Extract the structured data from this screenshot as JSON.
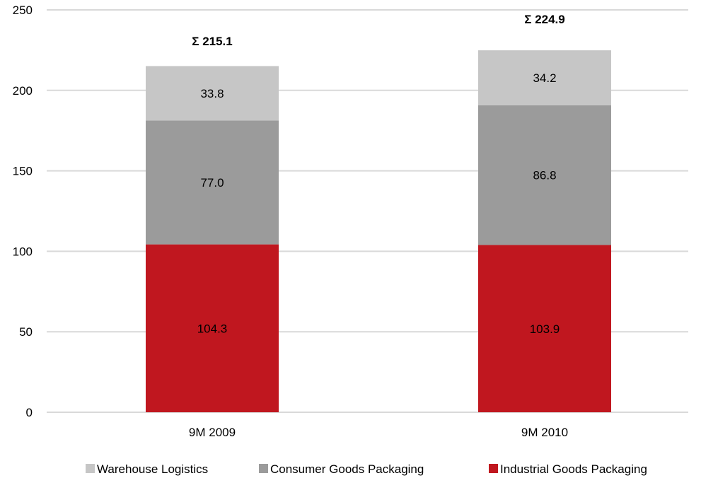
{
  "chart_data": {
    "type": "bar",
    "stacked": true,
    "categories": [
      "9M 2009",
      "9M 2010"
    ],
    "series": [
      {
        "name": "Industrial Goods Packaging",
        "color": "#c0171f",
        "values": [
          104.3,
          103.9
        ],
        "labels": [
          "104.3",
          "103.9"
        ]
      },
      {
        "name": "Consumer Goods Packaging",
        "color": "#9b9b9b",
        "values": [
          77.0,
          86.8
        ],
        "labels": [
          "77.0",
          "86.8"
        ]
      },
      {
        "name": "Warehouse Logistics",
        "color": "#c6c6c6",
        "values": [
          33.8,
          34.2
        ],
        "labels": [
          "33.8",
          "34.2"
        ]
      }
    ],
    "totals": [
      "Σ 215.1",
      "Σ 224.9"
    ],
    "legend_order": [
      "Warehouse Logistics",
      "Consumer Goods Packaging",
      "Industrial Goods Packaging"
    ],
    "ylim": [
      0,
      250
    ],
    "yticks": [
      0,
      50,
      100,
      150,
      200,
      250
    ],
    "grid": true,
    "legend_position": "bottom",
    "title": "",
    "xlabel": "",
    "ylabel": ""
  }
}
